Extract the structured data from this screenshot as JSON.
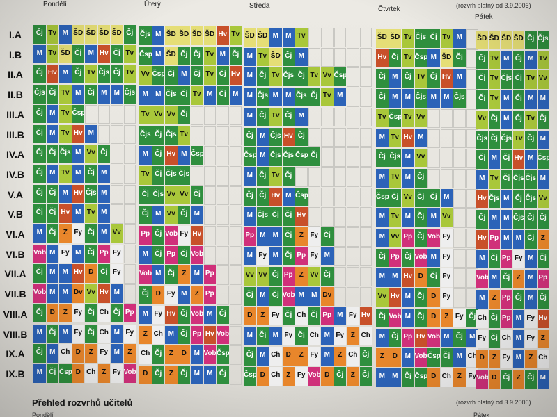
{
  "photo": {
    "description_free": true,
    "accent_colors": {
      "cj": "#2f8f3e",
      "tv": "#a9c73a",
      "m": "#2c63b8",
      "sd": "#e5de76",
      "hv": "#c8502a",
      "fy": "#eeeeee",
      "pink": "#d0307a",
      "orange": "#e8862b",
      "dark": "#2a3f8f",
      "red": "#c8242e"
    }
  },
  "header": {
    "days": [
      "Pondělí",
      "Úterý",
      "Středa",
      "Čtvrtek",
      "Pátek"
    ],
    "validity": "(rozvrh platný od 3.9.2006)"
  },
  "rows": [
    "I.A",
    "I.B",
    "II.A",
    "II.B",
    "III.A",
    "III.B",
    "IV.A",
    "IV.B",
    "V.A",
    "V.B",
    "VI.A",
    "VI.B",
    "VII.A",
    "VII.B",
    "VIII.A",
    "VIII.B",
    "IX.A",
    "IX.B"
  ],
  "cells": {
    "r0": [
      "Čj",
      "Tv",
      "M",
      "ŠD",
      "ŠD",
      "ŠD",
      "ŠD",
      "Čj",
      "Čjs",
      "M",
      "ŠD",
      "ŠD",
      "ŠD",
      "ŠD",
      "Hv",
      "Tv",
      "ŠD",
      "ŠD",
      "M",
      "M",
      "Tv",
      "ŠD",
      "ŠD",
      "Tv",
      "Čjs"
    ],
    "r1": [
      "M",
      "Tv",
      "ŠD",
      "Čj",
      "M",
      "Hv",
      "Čj",
      "Tv",
      "Čsp",
      "M",
      "ŠD",
      "Čj",
      "Čj",
      "Tv",
      "M",
      "Čj"
    ],
    "r2": [
      "Čj",
      "Hv",
      "M",
      "Čj",
      "Tv",
      "Čjs",
      "Čj",
      "Tv",
      "Vv",
      "Čsp",
      "Čj",
      "M",
      "Čj",
      "Tv"
    ],
    "r3": [
      "Čjs",
      "Čj",
      "Tv",
      "M",
      "Čj",
      "M",
      "M",
      "Čjs",
      "M",
      "M"
    ],
    "r4": [
      "Čj",
      "M",
      "Tv",
      "Čsp",
      "Tv",
      "Vv",
      "Vv",
      "Čj",
      "M",
      "Čj",
      "Tv"
    ],
    "r5": [
      "Čj",
      "M",
      "Tv",
      "Hv",
      "M",
      "Čjs",
      "Čj",
      "Čjs",
      "Tv",
      "Čj",
      "M",
      "Čjs",
      "Hv"
    ],
    "r6": [
      "Čj",
      "Čj",
      "Čjs",
      "M",
      "Vv",
      "Čj",
      "M",
      "Čj",
      "Hv",
      "M",
      "Čsp",
      "Čsp",
      "M",
      "Čjs",
      "Čjs",
      "Čsp"
    ],
    "r7": [
      "Čj",
      "M",
      "Tv",
      "M",
      "Čj",
      "M",
      "Tv",
      "Čj",
      "Čjs",
      "Čjs",
      "M",
      "Čj",
      "Tv"
    ],
    "r8": [
      "Čj",
      "Čj",
      "M",
      "Hv",
      "Čjs",
      "M",
      "Čj",
      "Čjs",
      "Vv",
      "Vv",
      "Čj",
      "Čj",
      "Čj",
      "Hv",
      "M",
      "Čsp",
      "Čsp",
      "Čj",
      "Vv"
    ],
    "r9": [
      "Čj",
      "Čj",
      "Hv",
      "M",
      "Tv",
      "M",
      "Čj",
      "M",
      "Vv",
      "Čj",
      "M",
      "M",
      "Čjs"
    ],
    "r10": [
      "M",
      "Čj",
      "Z",
      "Fy",
      "Čj",
      "M",
      "Vv",
      "Pp",
      "Čj",
      "Vob",
      "Fy",
      "Hv",
      "Pp",
      "M"
    ],
    "r11": [
      "Vob",
      "M",
      "Fy",
      "M",
      "Čj",
      "Pp",
      "Fy",
      "M",
      "Čj",
      "Pp",
      "Čj"
    ],
    "r12": [
      "Čj",
      "M",
      "M",
      "Hv",
      "D",
      "Čj",
      "Fy",
      "Vob",
      "M",
      "Čj",
      "Z",
      "M",
      "Pp",
      "Vv",
      "Vv",
      "Čj",
      "Pp",
      "Z",
      "Vv"
    ],
    "r13": [
      "Vob",
      "M",
      "M",
      "Dv",
      "Vv",
      "Hv",
      "M",
      "Čj",
      "D",
      "Fy",
      "M",
      "Z",
      "Pp",
      "Čj",
      "M",
      "Čj"
    ],
    "r14": [
      "Čj",
      "D",
      "Z",
      "Fy",
      "Čj",
      "Ch",
      "Čj",
      "Pp",
      "M",
      "Fy",
      "Hv",
      "Čj",
      "Vob",
      "M"
    ],
    "r15": [
      "M",
      "Čj",
      "M",
      "Fy",
      "Čj",
      "Ch",
      "M",
      "Fy",
      "Z",
      "Ch",
      "M",
      "Čj",
      "Pp",
      "Hv",
      "Vob"
    ],
    "r16": [
      "Čj",
      "M",
      "Ch",
      "D",
      "Z",
      "Fy",
      "M",
      "Z",
      "Ch",
      "Čj",
      "Z",
      "D",
      "M",
      "Vob",
      "Čsp"
    ],
    "r17": [
      "M",
      "Čj",
      "Čsp",
      "D",
      "Ch",
      "Z",
      "Fy",
      "Vob",
      "D",
      "Čj",
      "Z",
      "Čj",
      "M"
    ]
  },
  "footer": {
    "title": "Přehled rozvrhů učitelů",
    "validity": "(rozvrh platný od 3.9.2006)",
    "days": [
      "Pondělí",
      "Pátek"
    ]
  }
}
